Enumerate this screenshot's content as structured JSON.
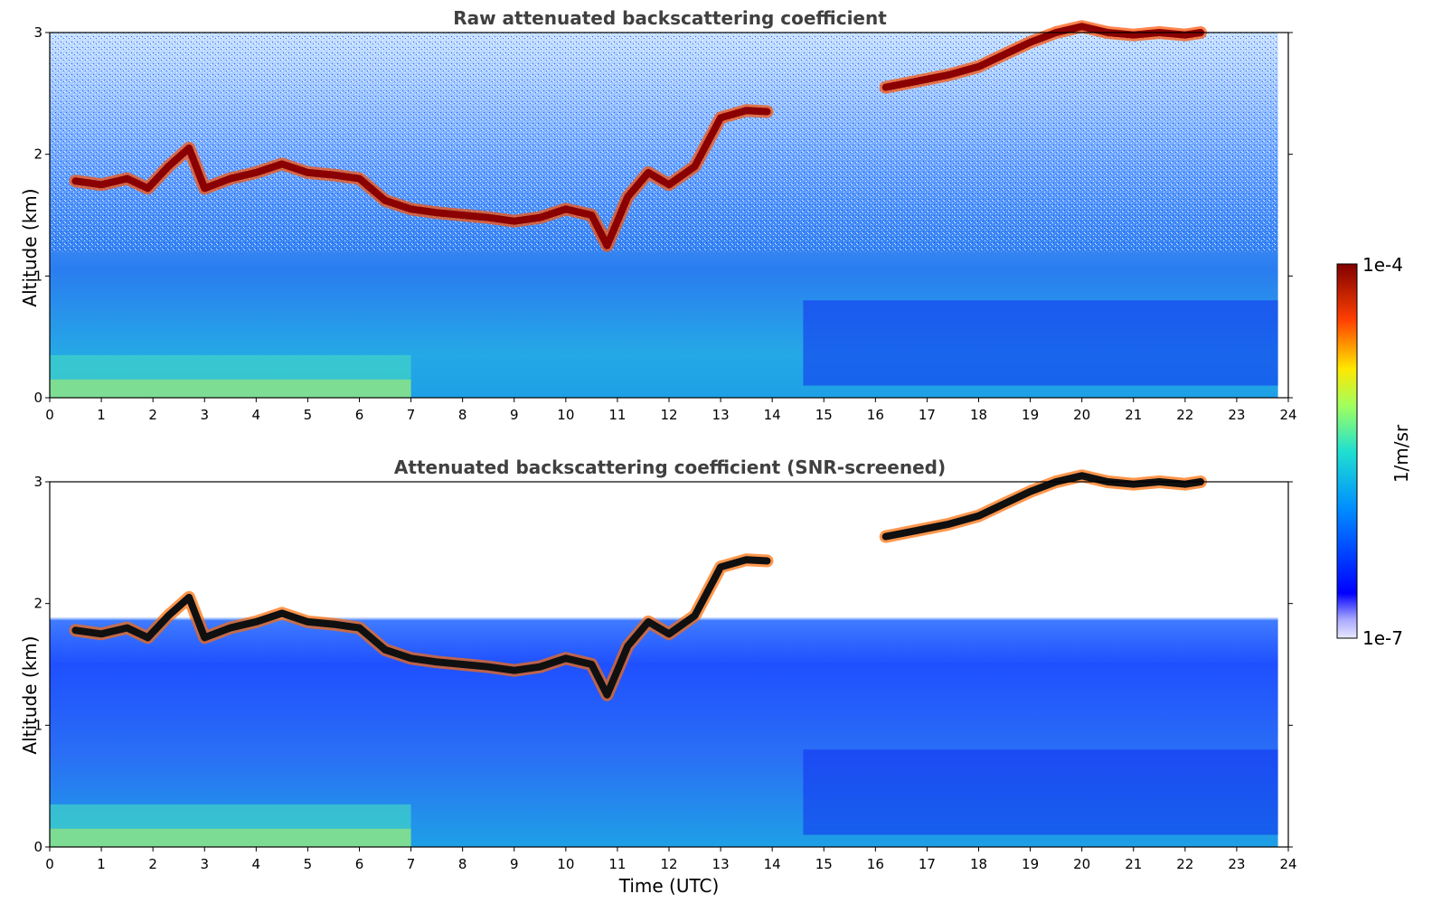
{
  "chart_data": [
    {
      "type": "heatmap",
      "title": "Raw attenuated backscattering coefficient",
      "xlabel": "",
      "ylabel": "Altitude (km)",
      "xlim": [
        0,
        24
      ],
      "ylim": [
        0,
        3
      ],
      "x_ticks": [
        "0",
        "1",
        "2",
        "3",
        "4",
        "5",
        "6",
        "7",
        "8",
        "9",
        "10",
        "11",
        "12",
        "13",
        "14",
        "15",
        "16",
        "17",
        "18",
        "19",
        "20",
        "21",
        "22",
        "23",
        "24"
      ],
      "y_ticks": [
        "0",
        "1",
        "2",
        "3"
      ],
      "cloud_layers": [
        {
          "x": [
            0.5,
            1.0,
            1.5,
            1.9,
            2.3,
            2.7,
            3.0,
            3.5,
            4.0,
            4.5,
            5.0,
            5.5,
            6.0,
            6.5,
            7.0,
            7.5,
            8.0,
            8.5,
            9.0,
            9.5,
            10.0,
            10.5,
            10.8,
            11.2,
            11.6,
            12.0,
            12.5,
            13.0,
            13.5,
            13.9
          ],
          "y": [
            1.78,
            1.75,
            1.8,
            1.72,
            1.9,
            2.05,
            1.72,
            1.8,
            1.85,
            1.92,
            1.85,
            1.83,
            1.8,
            1.62,
            1.55,
            1.52,
            1.5,
            1.48,
            1.45,
            1.48,
            1.55,
            1.5,
            1.25,
            1.65,
            1.85,
            1.75,
            1.9,
            2.3,
            2.36,
            2.35
          ]
        },
        {
          "x": [
            16.2,
            16.8,
            17.4,
            18.0,
            18.5,
            19.0,
            19.5,
            20.0,
            20.5,
            21.0,
            21.5,
            22.0,
            22.3
          ],
          "y": [
            2.55,
            2.6,
            2.65,
            2.72,
            2.82,
            2.92,
            3.0,
            3.05,
            3.0,
            2.98,
            3.0,
            2.98,
            3.0
          ]
        }
      ],
      "colorbar": {
        "min": "1e-7",
        "max": "1e-4",
        "label": "1/m/sr"
      }
    },
    {
      "type": "heatmap",
      "title": "Attenuated backscattering coefficient (SNR-screened)",
      "xlabel": "Time (UTC)",
      "ylabel": "Altitude (km)",
      "xlim": [
        0,
        24
      ],
      "ylim": [
        0,
        3
      ],
      "x_ticks": [
        "0",
        "1",
        "2",
        "3",
        "4",
        "5",
        "6",
        "7",
        "8",
        "9",
        "10",
        "11",
        "12",
        "13",
        "14",
        "15",
        "16",
        "17",
        "18",
        "19",
        "20",
        "21",
        "22",
        "23",
        "24"
      ],
      "y_ticks": [
        "0",
        "1",
        "2",
        "3"
      ],
      "cloud_layers": [
        {
          "x": [
            0.5,
            1.0,
            1.5,
            1.9,
            2.3,
            2.7,
            3.0,
            3.5,
            4.0,
            4.5,
            5.0,
            5.5,
            6.0,
            6.5,
            7.0,
            7.5,
            8.0,
            8.5,
            9.0,
            9.5,
            10.0,
            10.5,
            10.8,
            11.2,
            11.6,
            12.0,
            12.5,
            13.0,
            13.5,
            13.9
          ],
          "y": [
            1.78,
            1.75,
            1.8,
            1.72,
            1.9,
            2.05,
            1.72,
            1.8,
            1.85,
            1.92,
            1.85,
            1.83,
            1.8,
            1.62,
            1.55,
            1.52,
            1.5,
            1.48,
            1.45,
            1.48,
            1.55,
            1.5,
            1.25,
            1.65,
            1.85,
            1.75,
            1.9,
            2.3,
            2.36,
            2.35
          ]
        },
        {
          "x": [
            16.2,
            16.8,
            17.4,
            18.0,
            18.5,
            19.0,
            19.5,
            20.0,
            20.5,
            21.0,
            21.5,
            22.0,
            22.3
          ],
          "y": [
            2.55,
            2.6,
            2.65,
            2.72,
            2.82,
            2.92,
            3.0,
            3.05,
            3.0,
            2.98,
            3.0,
            2.98,
            3.0
          ]
        }
      ],
      "colorbar": {
        "min": "1e-7",
        "max": "1e-4",
        "label": "1/m/sr"
      }
    }
  ],
  "colorbar": {
    "max_label": "1e-4",
    "min_label": "1e-7",
    "unit_label": "1/m/sr"
  }
}
